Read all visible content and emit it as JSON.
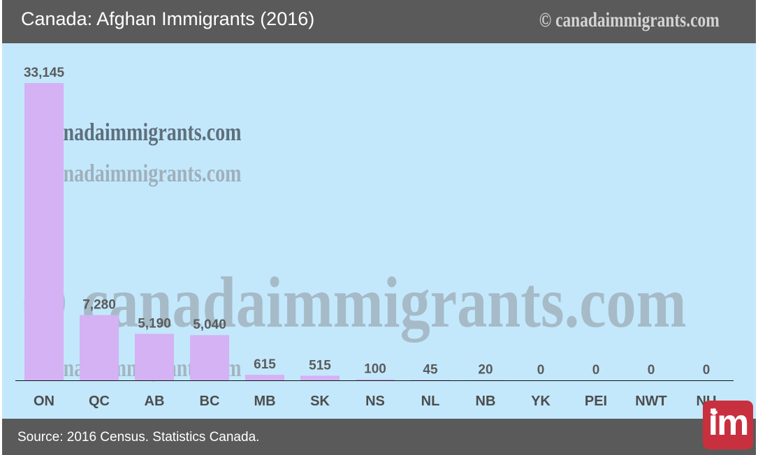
{
  "header": {
    "title": "Canada: Afghan Immigrants (2016)",
    "watermark": "© canadaimmigrants.com"
  },
  "watermarks": {
    "text": "© canadaimmigrants.com"
  },
  "footer": {
    "source": "Source: 2016 Census. Statistics Canada."
  },
  "logo": {
    "text": "im",
    "icon": "maple-leaf-icon"
  },
  "colors": {
    "header_bg": "#5a5a5a",
    "plot_bg": "#c3e8fc",
    "bar": "#d4b2f3",
    "label": "#5b5b5b",
    "axis_label": "#4d4d4d",
    "logo_bg": "#c8303f"
  },
  "chart_data": {
    "type": "bar",
    "title": "Canada: Afghan Immigrants (2016)",
    "categories": [
      "ON",
      "QC",
      "AB",
      "BC",
      "MB",
      "SK",
      "NS",
      "NL",
      "NB",
      "YK",
      "PEI",
      "NWT",
      "NU"
    ],
    "values": [
      33145,
      7280,
      5190,
      5040,
      615,
      515,
      100,
      45,
      20,
      0,
      0,
      0,
      0
    ],
    "value_labels": [
      "33,145",
      "7,280",
      "5,190",
      "5,040",
      "615",
      "515",
      "100",
      "45",
      "20",
      "0",
      "0",
      "0",
      "0"
    ],
    "ylim": [
      0,
      33145
    ],
    "grid": false,
    "legend": "none"
  }
}
